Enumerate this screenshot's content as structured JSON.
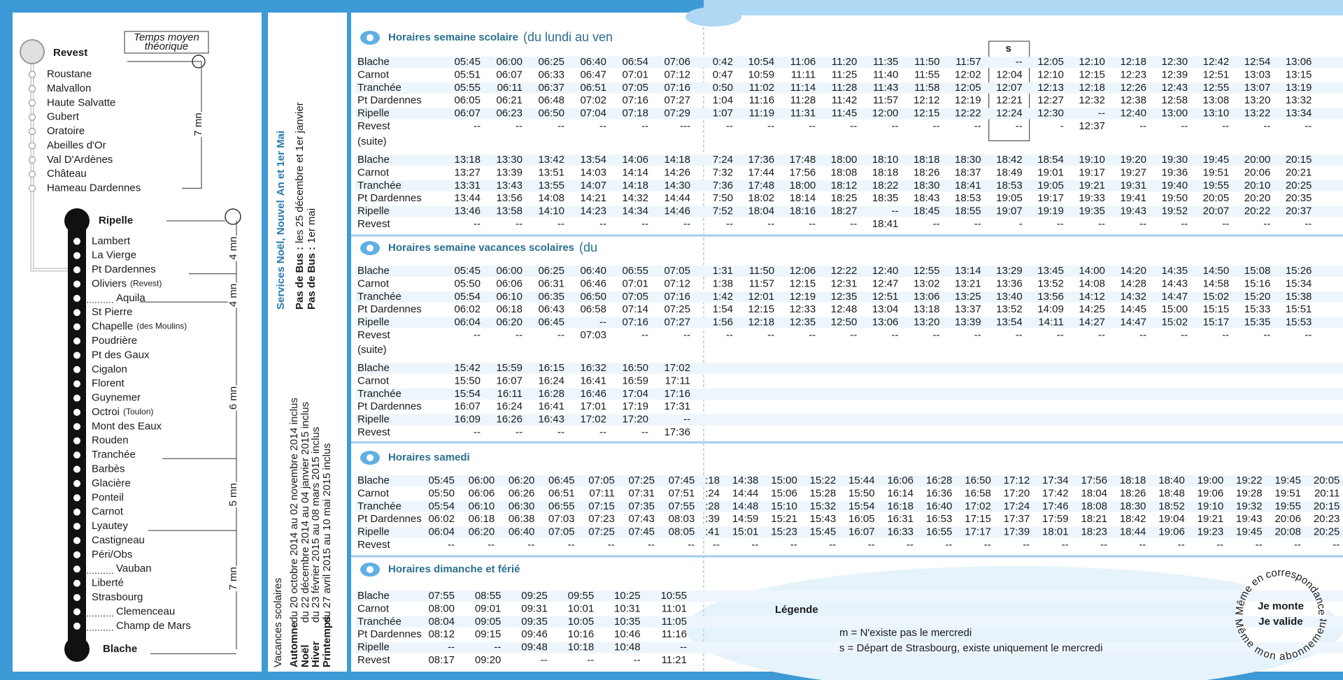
{
  "route": {
    "legend_box": "Temps moyen",
    "legend_box2": "théorique",
    "top_stop": "Revest",
    "branch_stops": [
      "Roustane",
      "Malvallon",
      "Haute Salvatte",
      "Gubert",
      "Oratoire",
      "Abeilles d'Or",
      "Val D'Ardènes",
      "Château",
      "Hameau Dardennes"
    ],
    "hub_stop": "Ripelle",
    "main_stops": [
      {
        "name": "Lambert"
      },
      {
        "name": "La Vierge"
      },
      {
        "name": "Pt Dardennes"
      },
      {
        "name": "Oliviers",
        "note": "(Revest)"
      },
      {
        "name": "Aquila"
      },
      {
        "name": "St Pierre"
      },
      {
        "name": "Chapelle",
        "note": "(des Moulins)"
      },
      {
        "name": "Poudrière"
      },
      {
        "name": "Pt des Gaux"
      },
      {
        "name": "Cigalon"
      },
      {
        "name": "Florent"
      },
      {
        "name": "Guynemer"
      },
      {
        "name": "Octroi",
        "note": "(Toulon)"
      },
      {
        "name": "Mont des Eaux"
      },
      {
        "name": "Rouden"
      },
      {
        "name": "Tranchée"
      },
      {
        "name": "Barbès"
      },
      {
        "name": "Glacière"
      },
      {
        "name": "Ponteil"
      },
      {
        "name": "Carnot"
      },
      {
        "name": "Lyautey"
      },
      {
        "name": "Castigneau"
      },
      {
        "name": "Péri/Obs"
      },
      {
        "name": "Vauban"
      },
      {
        "name": "Liberté"
      },
      {
        "name": "Strasbourg"
      },
      {
        "name": "Clemenceau"
      },
      {
        "name": "Champ de Mars"
      }
    ],
    "end_stop": "Blache",
    "durations": [
      "7 mn",
      "4 mn",
      "4 mn",
      "6 mn",
      "5 mn",
      "7 mn"
    ]
  },
  "vacations": {
    "title": "Vacances scolaires",
    "periods": [
      {
        "name": "Automne",
        "dates": "du 20 octobre 2014 au 02  novembre 2014 inclus"
      },
      {
        "name": "Noël",
        "dates": "du 22 décembre 2014 au 04 janvier 2015 inclus"
      },
      {
        "name": "Hiver",
        "dates": "du 23 février 2015 au 08 mars 2015 inclus"
      },
      {
        "name": "Printemps",
        "dates": "du 27 avril 2015 au 10 mai 2015 inclus"
      }
    ]
  },
  "services": {
    "title": "Services Noël, Nouvel",
    "title_bold": "An et 1er Mai",
    "lines": [
      {
        "label": "Pas de Bus :",
        "text": "les 25 décembre et 1er janvier"
      },
      {
        "label": "Pas de Bus :",
        "text": "1er mai"
      }
    ]
  },
  "timetables": [
    {
      "title": "Horaires semaine scolaire",
      "subtitle": "(du lundi au ven",
      "stops": [
        "Blache",
        "Carnot",
        "Tranchée",
        "Pt Dardennes",
        "Ripelle",
        "Revest"
      ],
      "column_headers": [
        null,
        null,
        null,
        null,
        null,
        null,
        null,
        null,
        null,
        null,
        null,
        null,
        null,
        "s",
        null,
        null,
        null,
        null,
        null,
        null,
        null
      ],
      "parts": [
        {
          "rows": [
            [
              "05:45",
              "06:00",
              "06:25",
              "06:40",
              "06:54",
              "07:06",
              "0:42",
              "10:54",
              "11:06",
              "11:20",
              "11:35",
              "11:50",
              "11:57",
              "--",
              "12:05",
              "12:10",
              "12:18",
              "12:30",
              "12:42",
              "12:54",
              "13:06"
            ],
            [
              "05:51",
              "06:07",
              "06:33",
              "06:47",
              "07:01",
              "07:12",
              "0:47",
              "10:59",
              "11:11",
              "11:25",
              "11:40",
              "11:55",
              "12:02",
              "12:04",
              "12:10",
              "12:15",
              "12:23",
              "12:39",
              "12:51",
              "13:03",
              "13:15"
            ],
            [
              "05:55",
              "06:11",
              "06:37",
              "06:51",
              "07:05",
              "07:16",
              "0:50",
              "11:02",
              "11:14",
              "11:28",
              "11:43",
              "11:58",
              "12:05",
              "12:07",
              "12:13",
              "12:18",
              "12:26",
              "12:43",
              "12:55",
              "13:07",
              "13:19"
            ],
            [
              "06:05",
              "06:21",
              "06:48",
              "07:02",
              "07:16",
              "07:27",
              "1:04",
              "11:16",
              "11:28",
              "11:42",
              "11:57",
              "12:12",
              "12:19",
              "12:21",
              "12:27",
              "12:32",
              "12:38",
              "12:58",
              "13:08",
              "13:20",
              "13:32"
            ],
            [
              "06:07",
              "06:23",
              "06:50",
              "07:04",
              "07:18",
              "07:29",
              "1:07",
              "11:19",
              "11:31",
              "11:45",
              "12:00",
              "12:15",
              "12:22",
              "12:24",
              "12:30",
              "--",
              "12:40",
              "13:00",
              "13:10",
              "13:22",
              "13:34"
            ],
            [
              "--",
              "--",
              "--",
              "--",
              "--",
              "---",
              "--",
              "--",
              "--",
              "--",
              "--",
              "--",
              "--",
              "--",
              "-",
              "12:37",
              "--",
              "--",
              "--",
              "--",
              "--"
            ]
          ]
        },
        {
          "label": "(suite)",
          "rows": [
            [
              "13:18",
              "13:30",
              "13:42",
              "13:54",
              "14:06",
              "14:18",
              "7:24",
              "17:36",
              "17:48",
              "18:00",
              "18:10",
              "18:18",
              "18:30",
              "18:42",
              "18:54",
              "19:10",
              "19:20",
              "19:30",
              "19:45",
              "20:00",
              "20:15"
            ],
            [
              "13:27",
              "13:39",
              "13:51",
              "14:03",
              "14:14",
              "14:26",
              "7:32",
              "17:44",
              "17:56",
              "18:08",
              "18:18",
              "18:26",
              "18:37",
              "18:49",
              "19:01",
              "19:17",
              "19:27",
              "19:36",
              "19:51",
              "20:06",
              "20:21"
            ],
            [
              "13:31",
              "13:43",
              "13:55",
              "14:07",
              "14:18",
              "14:30",
              "7:36",
              "17:48",
              "18:00",
              "18:12",
              "18:22",
              "18:30",
              "18:41",
              "18:53",
              "19:05",
              "19:21",
              "19:31",
              "19:40",
              "19:55",
              "20:10",
              "20:25"
            ],
            [
              "13:44",
              "13:56",
              "14:08",
              "14:21",
              "14:32",
              "14:44",
              "7:50",
              "18:02",
              "18:14",
              "18:25",
              "18:35",
              "18:43",
              "18:53",
              "19:05",
              "19:17",
              "19:33",
              "19:41",
              "19:50",
              "20:05",
              "20:20",
              "20:35"
            ],
            [
              "13:46",
              "13:58",
              "14:10",
              "14:23",
              "14:34",
              "14:46",
              "7:52",
              "18:04",
              "18:16",
              "18:27",
              "--",
              "18:45",
              "18:55",
              "19:07",
              "19:19",
              "19:35",
              "19:43",
              "19:52",
              "20:07",
              "20:22",
              "20:37"
            ],
            [
              "--",
              "--",
              "--",
              "--",
              "--",
              "--",
              "--",
              "--",
              "--",
              "--",
              "18:41",
              "--",
              "--",
              "-",
              "--",
              "--",
              "--",
              "--",
              "--",
              "--",
              "--"
            ]
          ]
        }
      ]
    },
    {
      "title": "Horaires semaine vacances scolaires",
      "subtitle": "(du",
      "stops": [
        "Blache",
        "Carnot",
        "Tranchée",
        "Pt Dardennes",
        "Ripelle",
        "Revest"
      ],
      "parts": [
        {
          "rows": [
            [
              "05:45",
              "06:00",
              "06:25",
              "06:40",
              "06:55",
              "07:05",
              "1:31",
              "11:50",
              "12:06",
              "12:22",
              "12:40",
              "12:55",
              "13:14",
              "13:29",
              "13:45",
              "14:00",
              "14:20",
              "14:35",
              "14:50",
              "15:08",
              "15:26"
            ],
            [
              "05:50",
              "06:06",
              "06:31",
              "06:46",
              "07:01",
              "07:12",
              "1:38",
              "11:57",
              "12:15",
              "12:31",
              "12:47",
              "13:02",
              "13:21",
              "13:36",
              "13:52",
              "14:08",
              "14:28",
              "14:43",
              "14:58",
              "15:16",
              "15:34"
            ],
            [
              "05:54",
              "06:10",
              "06:35",
              "06:50",
              "07:05",
              "07:16",
              "1:42",
              "12:01",
              "12:19",
              "12:35",
              "12:51",
              "13:06",
              "13:25",
              "13:40",
              "13:56",
              "14:12",
              "14:32",
              "14:47",
              "15:02",
              "15:20",
              "15:38"
            ],
            [
              "06:02",
              "06:18",
              "06:43",
              "06:58",
              "07:14",
              "07:25",
              "1:54",
              "12:15",
              "12:33",
              "12:48",
              "13:04",
              "13:18",
              "13:37",
              "13:52",
              "14:09",
              "14:25",
              "14:45",
              "15:00",
              "15:15",
              "15:33",
              "15:51"
            ],
            [
              "06:04",
              "06:20",
              "06:45",
              "--",
              "07:16",
              "07:27",
              "1:56",
              "12:18",
              "12:35",
              "12:50",
              "13:06",
              "13:20",
              "13:39",
              "13:54",
              "14:11",
              "14:27",
              "14:47",
              "15:02",
              "15:17",
              "15:35",
              "15:53"
            ],
            [
              "--",
              "--",
              "--",
              "07:03",
              "--",
              "--",
              "--",
              "--",
              "--",
              "--",
              "--",
              "--",
              "--",
              "--",
              "--",
              "--",
              "--",
              "--",
              "--",
              "--",
              "--"
            ]
          ]
        },
        {
          "label": "(suite)",
          "rows": [
            [
              "15:42",
              "15:59",
              "16:15",
              "16:32",
              "16:50",
              "17:02"
            ],
            [
              "15:50",
              "16:07",
              "16:24",
              "16:41",
              "16:59",
              "17:11"
            ],
            [
              "15:54",
              "16:11",
              "16:28",
              "16:46",
              "17:04",
              "17:16"
            ],
            [
              "16:07",
              "16:24",
              "16:41",
              "17:01",
              "17:19",
              "17:31"
            ],
            [
              "16:09",
              "16:26",
              "16:43",
              "17:02",
              "17:20",
              "--"
            ],
            [
              "--",
              "--",
              "--",
              "--",
              "--",
              "17:36"
            ]
          ]
        }
      ]
    },
    {
      "title": "Horaires samedi",
      "stops": [
        "Blache",
        "Carnot",
        "Tranchée",
        "Pt Dardennes",
        "Ripelle",
        "Revest"
      ],
      "parts": [
        {
          "rows": [
            [
              "05:45",
              "06:00",
              "06:20",
              "06:45",
              "07:05",
              "07:25",
              "07:45",
              ":18",
              "14:38",
              "15:00",
              "15:22",
              "15:44",
              "16:06",
              "16:28",
              "16:50",
              "17:12",
              "17:34",
              "17:56",
              "18:18",
              "18:40",
              "19:00",
              "19:22",
              "19:45",
              "20:05"
            ],
            [
              "05:50",
              "06:06",
              "06:26",
              "06:51",
              "07:11",
              "07:31",
              "07:51",
              ":24",
              "14:44",
              "15:06",
              "15:28",
              "15:50",
              "16:14",
              "16:36",
              "16:58",
              "17:20",
              "17:42",
              "18:04",
              "18:26",
              "18:48",
              "19:06",
              "19:28",
              "19:51",
              "20:11"
            ],
            [
              "05:54",
              "06:10",
              "06:30",
              "06:55",
              "07:15",
              "07:35",
              "07:55",
              ":28",
              "14:48",
              "15:10",
              "15:32",
              "15:54",
              "16:18",
              "16:40",
              "17:02",
              "17:24",
              "17:46",
              "18:08",
              "18:30",
              "18:52",
              "19:10",
              "19:32",
              "19:55",
              "20:15"
            ],
            [
              "06:02",
              "06:18",
              "06:38",
              "07:03",
              "07:23",
              "07:43",
              "08:03",
              ":39",
              "14:59",
              "15:21",
              "15:43",
              "16:05",
              "16:31",
              "16:53",
              "17:15",
              "17:37",
              "17:59",
              "18:21",
              "18:42",
              "19:04",
              "19:21",
              "19:43",
              "20:06",
              "20:23"
            ],
            [
              "06:04",
              "06:20",
              "06:40",
              "07:05",
              "07:25",
              "07:45",
              "08:05",
              ":41",
              "15:01",
              "15:23",
              "15:45",
              "16:07",
              "16:33",
              "16:55",
              "17:17",
              "17:39",
              "18:01",
              "18:23",
              "18:44",
              "19:06",
              "19:23",
              "19:45",
              "20:08",
              "20:25"
            ],
            [
              "--",
              "--",
              "--",
              "--",
              "--",
              "--",
              "--",
              "--",
              "--",
              "--",
              "--",
              "--",
              "--",
              "--",
              "--",
              "--",
              "--",
              "--",
              "--",
              "--",
              "--",
              "--",
              "--",
              "--"
            ]
          ]
        }
      ]
    },
    {
      "title": "Horaires dimanche et férié",
      "stops": [
        "Blache",
        "Carnot",
        "Tranchée",
        "Pt Dardennes",
        "Ripelle",
        "Revest"
      ],
      "parts": [
        {
          "rows": [
            [
              "07:55",
              "08:55",
              "09:25",
              "09:55",
              "10:25",
              "10:55"
            ],
            [
              "08:00",
              "09:01",
              "09:31",
              "10:01",
              "10:31",
              "11:01"
            ],
            [
              "08:04",
              "09:05",
              "09:35",
              "10:05",
              "10:35",
              "11:05"
            ],
            [
              "08:12",
              "09:15",
              "09:46",
              "10:16",
              "10:46",
              "11:16"
            ],
            [
              "--",
              "--",
              "09:48",
              "10:18",
              "10:48",
              "--"
            ],
            [
              "08:17",
              "09:20",
              "--",
              "--",
              "--",
              "11:21"
            ]
          ]
        }
      ]
    }
  ],
  "legend": {
    "title": "Légende",
    "items": [
      "m = N'existe pas le mercredi",
      "s = Départ de Strasbourg, existe uniquement le mercredi"
    ]
  },
  "badge": {
    "top": "Même en correspondance",
    "lines": [
      "Je monte",
      "Je valide"
    ],
    "bottom": "Même mon abonnement"
  }
}
